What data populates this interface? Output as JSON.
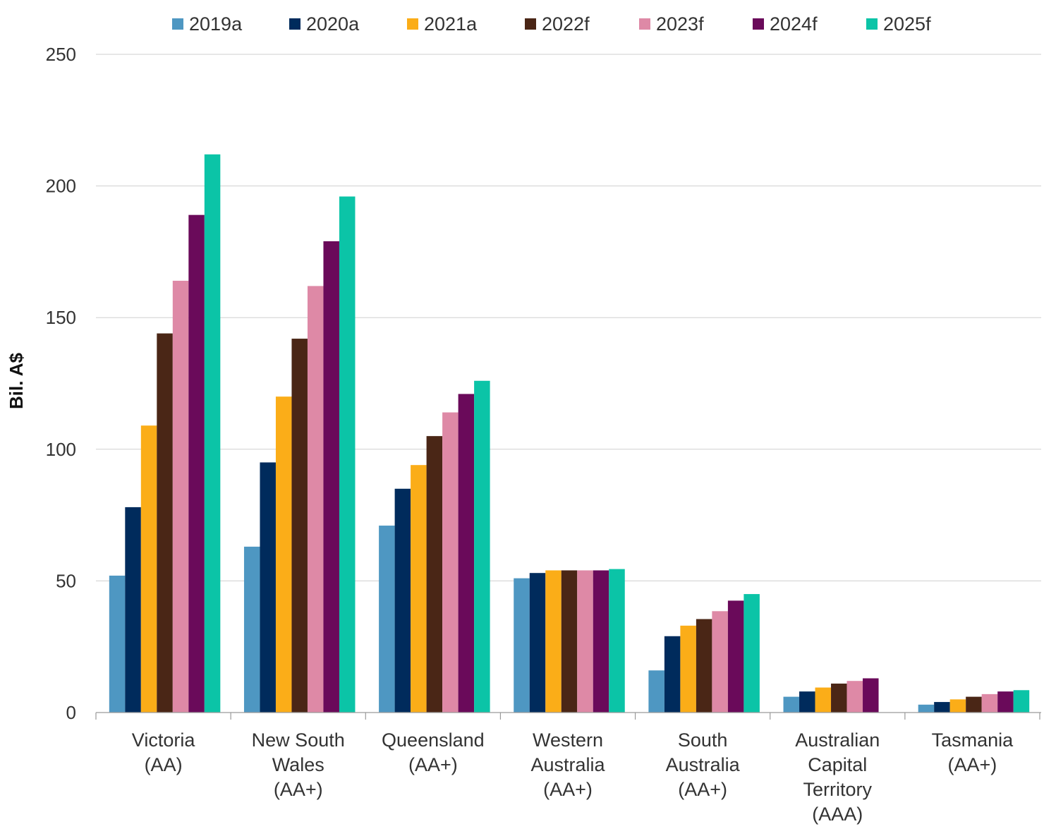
{
  "chart_data": {
    "type": "bar",
    "title": "",
    "xlabel": "",
    "ylabel": "Bil. A$",
    "ylim": [
      0,
      250
    ],
    "yticks": [
      0,
      50,
      100,
      150,
      200,
      250
    ],
    "grid": true,
    "legend_position": "top",
    "categories": [
      [
        "Victoria",
        "(AA)"
      ],
      [
        "New South",
        "Wales",
        "(AA+)"
      ],
      [
        "Queensland",
        "(AA+)"
      ],
      [
        "Western",
        "Australia",
        "(AA+)"
      ],
      [
        "South",
        "Australia",
        "(AA+)"
      ],
      [
        "Australian",
        "Capital",
        "Territory",
        "(AAA)"
      ],
      [
        "Tasmania",
        "(AA+)"
      ]
    ],
    "series": [
      {
        "name": "2019a",
        "color": "#4E97C2",
        "values": [
          52,
          63,
          71,
          51,
          16,
          6,
          3
        ]
      },
      {
        "name": "2020a",
        "color": "#002B5C",
        "values": [
          78,
          95,
          85,
          53,
          29,
          8,
          4
        ]
      },
      {
        "name": "2021a",
        "color": "#FBAD18",
        "values": [
          109,
          120,
          94,
          54,
          33,
          9.5,
          5
        ]
      },
      {
        "name": "2022f",
        "color": "#4A2616",
        "values": [
          144,
          142,
          105,
          54,
          35.5,
          11,
          6
        ]
      },
      {
        "name": "2023f",
        "color": "#DE89A6",
        "values": [
          164,
          162,
          114,
          54,
          38.5,
          12,
          7
        ]
      },
      {
        "name": "2024f",
        "color": "#6A0A5A",
        "values": [
          189,
          179,
          121,
          54,
          42.5,
          13,
          8
        ]
      },
      {
        "name": "2025f",
        "color": "#0BC4A7",
        "values": [
          212,
          196,
          126,
          54.5,
          45,
          0,
          8.5
        ]
      }
    ]
  }
}
